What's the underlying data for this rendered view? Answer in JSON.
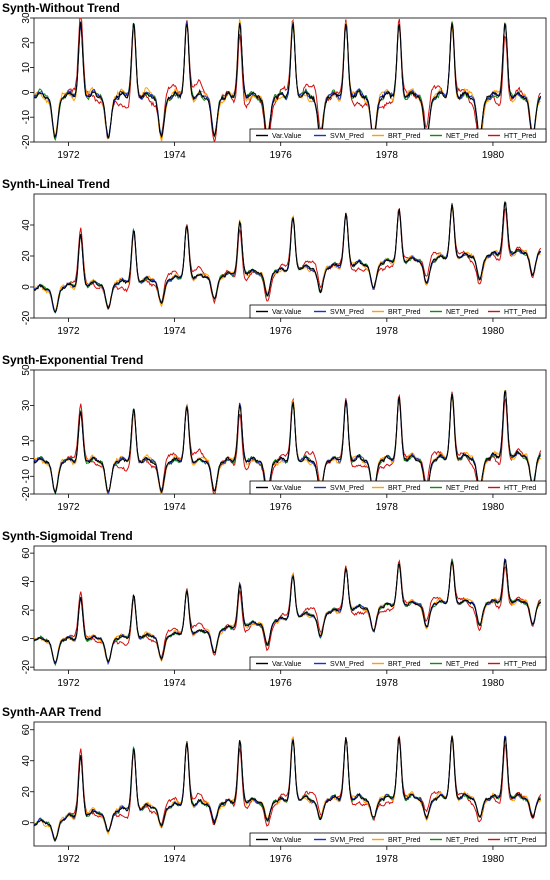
{
  "legend": [
    {
      "name": "Var.Value",
      "color": "#000000"
    },
    {
      "name": "SVM_Pred",
      "color": "#1f2fbf"
    },
    {
      "name": "BRT_Pred",
      "color": "#ffa000"
    },
    {
      "name": "NET_Pred",
      "color": "#138a13"
    },
    {
      "name": "HTT_Pred",
      "color": "#d01010"
    }
  ],
  "chart_data": [
    {
      "type": "line",
      "title": "Synth-Without Trend",
      "x_start": 1971.35,
      "x_end": 1981.0,
      "xticks": [
        "1972",
        "1974",
        "1976",
        "1978",
        "1980"
      ],
      "xtick_values": [
        1972,
        1974,
        1976,
        1978,
        1980
      ],
      "yticks": [
        "-20",
        "-10",
        "0",
        "10",
        "20",
        "30"
      ],
      "ytick_values": [
        -20,
        -10,
        0,
        10,
        20,
        30
      ],
      "ylim": [
        -20,
        30
      ],
      "legend_position": "bottom-right",
      "model": {
        "trend": "none",
        "base": 0,
        "peak": 30,
        "trough": -16,
        "start_value": 3
      }
    },
    {
      "type": "line",
      "title": "Synth-Lineal Trend",
      "x_start": 1971.35,
      "x_end": 1981.0,
      "xticks": [
        "1972",
        "1974",
        "1976",
        "1978",
        "1980"
      ],
      "xtick_values": [
        1972,
        1974,
        1976,
        1978,
        1980
      ],
      "yticks": [
        "-20",
        "0",
        "20",
        "40"
      ],
      "ytick_values": [
        -20,
        0,
        20,
        40
      ],
      "ylim": [
        -20,
        60
      ],
      "legend_position": "bottom-right",
      "model": {
        "trend": "linear",
        "base": 0,
        "slope": 2.5,
        "peak": 34,
        "trough": -15,
        "start_value": 3
      }
    },
    {
      "type": "line",
      "title": "Synth-Exponential Trend",
      "x_start": 1971.35,
      "x_end": 1981.0,
      "xticks": [
        "1972",
        "1974",
        "1976",
        "1978",
        "1980"
      ],
      "xtick_values": [
        1972,
        1974,
        1976,
        1978,
        1980
      ],
      "yticks": [
        "-20",
        "-10",
        "0",
        "10",
        "30",
        "50"
      ],
      "ytick_values": [
        -20,
        -10,
        0,
        10,
        30,
        50
      ],
      "ylim": [
        -20,
        50
      ],
      "legend_position": "bottom-right",
      "model": {
        "trend": "exponential",
        "base": 0,
        "peak": 28,
        "trough": -17,
        "start_value": 3
      }
    },
    {
      "type": "line",
      "title": "Synth-Sigmoidal Trend",
      "x_start": 1971.35,
      "x_end": 1981.0,
      "xticks": [
        "1972",
        "1974",
        "1976",
        "1978",
        "1980"
      ],
      "xtick_values": [
        1972,
        1974,
        1976,
        1978,
        1980
      ],
      "yticks": [
        "-20",
        "0",
        "20",
        "40",
        "60"
      ],
      "ytick_values": [
        -20,
        0,
        20,
        40,
        60
      ],
      "ylim": [
        -22,
        65
      ],
      "legend_position": "bottom-right",
      "model": {
        "trend": "sigmoidal",
        "base": 0,
        "peak": 30,
        "trough": -16,
        "start_value": 5
      }
    },
    {
      "type": "line",
      "title": "Synth-AAR Trend",
      "x_start": 1971.35,
      "x_end": 1981.0,
      "xticks": [
        "1972",
        "1974",
        "1976",
        "1978",
        "1980"
      ],
      "xtick_values": [
        1972,
        1974,
        1976,
        1978,
        1980
      ],
      "yticks": [
        "0",
        "20",
        "40",
        "60"
      ],
      "ytick_values": [
        0,
        20,
        40,
        60
      ],
      "ylim": [
        -15,
        65
      ],
      "legend_position": "bottom-right",
      "model": {
        "trend": "aar",
        "base": 0,
        "peak": 40,
        "trough": -12,
        "start_value": 4
      }
    }
  ]
}
